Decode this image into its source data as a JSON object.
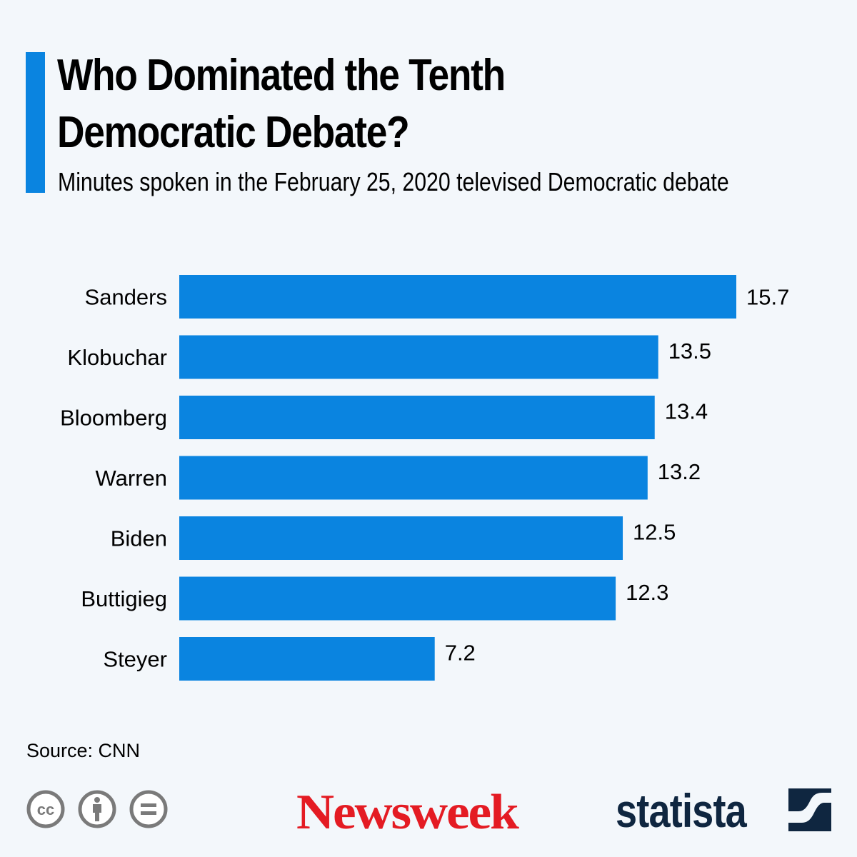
{
  "header": {
    "title_line1": "Who Dominated the Tenth",
    "title_line2": "Democratic Debate?",
    "subtitle": "Minutes spoken in the February 25, 2020 televised Democratic debate"
  },
  "footer": {
    "source": "Source: CNN",
    "license_icons": [
      "cc-icon",
      "attribution-icon",
      "no-derivatives-icon"
    ],
    "logos": {
      "newsweek": "Newsweek",
      "statista": "statista"
    }
  },
  "colors": {
    "bar": "#0a84e0",
    "accent": "#0a84e0",
    "newsweek": "#e41b23",
    "statista": "#0f2640",
    "background": "#f3f7fb"
  },
  "chart_data": {
    "type": "bar",
    "orientation": "horizontal",
    "title": "Who Dominated the Tenth Democratic Debate?",
    "subtitle": "Minutes spoken in the February 25, 2020 televised Democratic debate",
    "xlabel": "",
    "ylabel": "",
    "categories": [
      "Sanders",
      "Klobuchar",
      "Bloomberg",
      "Warren",
      "Biden",
      "Buttigieg",
      "Steyer"
    ],
    "values": [
      15.7,
      13.5,
      13.4,
      13.2,
      12.5,
      12.3,
      7.2
    ],
    "value_labels": [
      "15.7",
      "13.5",
      "13.4",
      "13.2",
      "12.5",
      "12.3",
      "7.2"
    ],
    "xlim": [
      0,
      15.7
    ],
    "grid": false,
    "legend": "none"
  }
}
